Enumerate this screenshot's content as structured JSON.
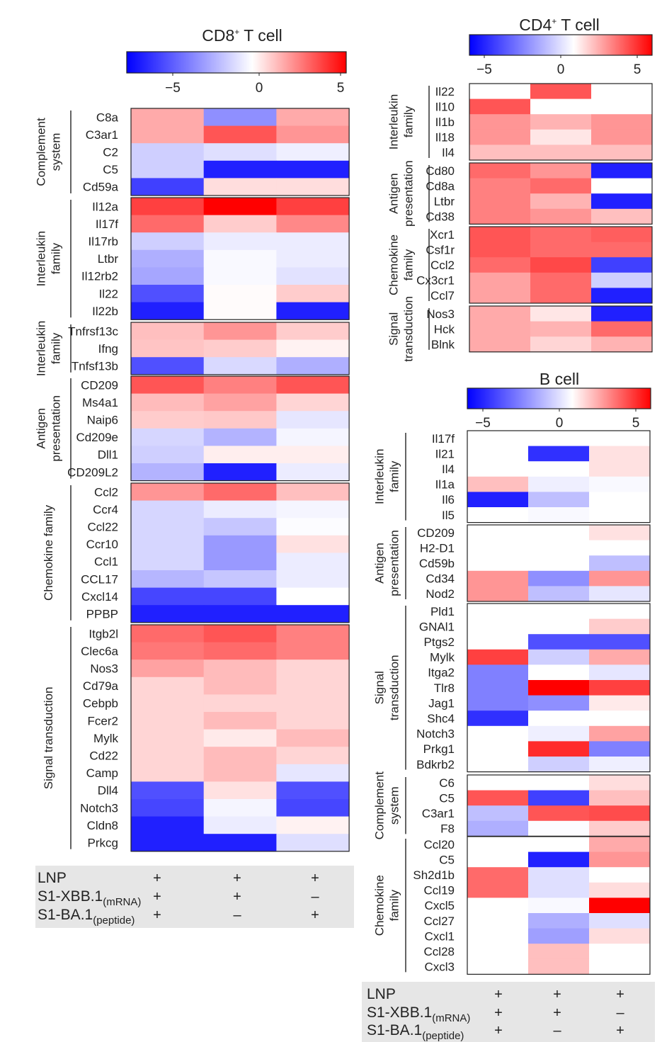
{
  "color_scale": {
    "min": -8,
    "mid": 0,
    "max": 6,
    "low_color": "#0000ff",
    "mid_color": "#ffffff",
    "high_color": "#ff0000"
  },
  "conditions": {
    "labels": [
      "LNP",
      "S1-XBB.1",
      "S1-BA.1"
    ],
    "subscripts": [
      "",
      "(mRNA)",
      "(peptide)"
    ],
    "rows": [
      [
        "+",
        "+",
        "+"
      ],
      [
        "+",
        "+",
        "–"
      ],
      [
        "+",
        "–",
        "+"
      ]
    ]
  },
  "chart_data": [
    {
      "type": "heatmap",
      "title": "CD8",
      "title_superscript": "+",
      "title_suffix": " T cell",
      "colorbar_ticks": [
        {
          "value": -5,
          "label": "−5"
        },
        {
          "value": 0,
          "label": "0"
        },
        {
          "value": 5,
          "label": "5"
        }
      ],
      "groups": [
        {
          "label": [
            "Complement",
            "system"
          ],
          "rows": [
            {
              "gene": "C8a",
              "values": [
                2,
                -3.5,
                2
              ]
            },
            {
              "gene": "C3ar1",
              "values": [
                2,
                4,
                2.5
              ]
            },
            {
              "gene": "C2",
              "values": [
                -1.5,
                -1,
                -0.5
              ]
            },
            {
              "gene": "C5",
              "values": [
                -1.5,
                -7,
                -7
              ]
            },
            {
              "gene": "Cd59a",
              "values": [
                -6,
                0.8,
                0.8
              ]
            }
          ]
        },
        {
          "label": [
            "Interleukin",
            "family"
          ],
          "rows": [
            {
              "gene": "Il12a",
              "values": [
                4.5,
                6,
                4.5
              ]
            },
            {
              "gene": "Il17f",
              "values": [
                3.5,
                1.2,
                2.8
              ]
            },
            {
              "gene": "Il17rb",
              "values": [
                -1.5,
                -0.6,
                -0.6
              ]
            },
            {
              "gene": "Ltbr",
              "values": [
                -2.5,
                -0.2,
                -0.6
              ]
            },
            {
              "gene": "Il12rb2",
              "values": [
                -2.8,
                -0.2,
                -0.9
              ]
            },
            {
              "gene": "Il22",
              "values": [
                -5.5,
                0.1,
                1.2
              ]
            },
            {
              "gene": "Il22b",
              "values": [
                -7,
                0.1,
                -7
              ]
            }
          ]
        },
        {
          "label": [
            "Interleukin",
            "family"
          ],
          "rows": [
            {
              "gene": "Tnfrsf13c",
              "values": [
                1.5,
                2.5,
                1.2
              ]
            },
            {
              "gene": "Ifng",
              "values": [
                1.4,
                1.2,
                0.3
              ]
            },
            {
              "gene": "Tnfsf13b",
              "values": [
                -5.5,
                -1.2,
                -2.5
              ]
            }
          ]
        },
        {
          "label": [
            "Antigen",
            "presentation"
          ],
          "rows": [
            {
              "gene": "CD209",
              "values": [
                4,
                3,
                4
              ]
            },
            {
              "gene": "Ms4a1",
              "values": [
                1.6,
                2.2,
                1
              ]
            },
            {
              "gene": "Naip6",
              "values": [
                1.2,
                1.3,
                -0.8
              ]
            },
            {
              "gene": "Cd209e",
              "values": [
                -1.3,
                -2.4,
                -0.3
              ]
            },
            {
              "gene": "Dll1",
              "values": [
                -1.5,
                0.4,
                0.4
              ]
            },
            {
              "gene": "CD209L2",
              "values": [
                -2.4,
                -7,
                -0.6
              ]
            }
          ]
        },
        {
          "label": [
            "Chemokine family"
          ],
          "rows": [
            {
              "gene": "Ccl2",
              "values": [
                2.5,
                3.5,
                1.5
              ]
            },
            {
              "gene": "Ccr4",
              "values": [
                -1.3,
                -0.6,
                -0.3
              ]
            },
            {
              "gene": "Ccl22",
              "values": [
                -1.3,
                -1.8,
                -0.1
              ]
            },
            {
              "gene": "Ccr10",
              "values": [
                -1.3,
                -3.2,
                0.7
              ]
            },
            {
              "gene": "Ccl1",
              "values": [
                -1.3,
                -3.2,
                -0.6
              ]
            },
            {
              "gene": "CCL17",
              "values": [
                -2.3,
                -1.8,
                -0.6
              ]
            },
            {
              "gene": "Cxcl14",
              "values": [
                -5.8,
                -5.8,
                0
              ]
            },
            {
              "gene": "PPBP",
              "values": [
                -7,
                -7,
                -7
              ]
            }
          ]
        },
        {
          "label": [
            "Signal transduction"
          ],
          "rows": [
            {
              "gene": "Itgb2l",
              "values": [
                3.5,
                4,
                3
              ]
            },
            {
              "gene": "Clec6a",
              "values": [
                3.2,
                3.5,
                3
              ]
            },
            {
              "gene": "Nos3",
              "values": [
                2.2,
                1.6,
                1
              ]
            },
            {
              "gene": "Cd79a",
              "values": [
                1,
                1.6,
                1
              ]
            },
            {
              "gene": "Cebpb",
              "values": [
                1,
                1,
                1
              ]
            },
            {
              "gene": "Fcer2",
              "values": [
                1,
                1.6,
                1
              ]
            },
            {
              "gene": "Mylk",
              "values": [
                1,
                0.5,
                1.6
              ]
            },
            {
              "gene": "Cd22",
              "values": [
                1,
                1.6,
                1
              ]
            },
            {
              "gene": "Camp",
              "values": [
                1,
                1.6,
                -0.8
              ]
            },
            {
              "gene": "Dll4",
              "values": [
                -5.5,
                0.7,
                -5.5
              ]
            },
            {
              "gene": "Notch3",
              "values": [
                -5.8,
                -0.3,
                -5.8
              ]
            },
            {
              "gene": "Cldn8",
              "values": [
                -7,
                -0.6,
                0.3
              ]
            },
            {
              "gene": "Prkcg",
              "values": [
                -7,
                -7,
                -1
              ]
            }
          ]
        }
      ]
    },
    {
      "type": "heatmap",
      "title": "CD4",
      "title_superscript": "+",
      "title_suffix": " T cell",
      "colorbar_ticks": [
        {
          "value": -5,
          "label": "−5"
        },
        {
          "value": 0,
          "label": "0"
        },
        {
          "value": 5,
          "label": "5"
        }
      ],
      "groups": [
        {
          "label": [
            "Interleukin",
            "family"
          ],
          "rows": [
            {
              "gene": "Il22",
              "values": [
                0,
                4,
                0
              ]
            },
            {
              "gene": "Il10",
              "values": [
                4,
                0,
                0
              ]
            },
            {
              "gene": "Il1b",
              "values": [
                2.5,
                1.8,
                2.5
              ]
            },
            {
              "gene": "Il18",
              "values": [
                2.5,
                0.6,
                2.5
              ]
            },
            {
              "gene": "Il4",
              "values": [
                1.5,
                1.5,
                1.5
              ]
            }
          ]
        },
        {
          "label": [
            "Antigen",
            "presentation"
          ],
          "rows": [
            {
              "gene": "Cd80",
              "values": [
                3.5,
                2.5,
                -7
              ]
            },
            {
              "gene": "Cd8a",
              "values": [
                3,
                3.5,
                0
              ]
            },
            {
              "gene": "Ltbr",
              "values": [
                3,
                1.8,
                -7
              ]
            },
            {
              "gene": "Cd38",
              "values": [
                3,
                2.5,
                1.5
              ]
            }
          ]
        },
        {
          "label": [
            "Chemokine",
            "family"
          ],
          "rows": [
            {
              "gene": "Xcr1",
              "values": [
                4,
                3.5,
                3.8
              ]
            },
            {
              "gene": "Csf1r",
              "values": [
                4,
                3.5,
                3.5
              ]
            },
            {
              "gene": "Ccl2",
              "values": [
                3.5,
                4.3,
                -6
              ]
            },
            {
              "gene": "Cx3cr1",
              "values": [
                2.2,
                3.5,
                -1.5
              ]
            },
            {
              "gene": "Ccl7",
              "values": [
                2.2,
                3.5,
                -7
              ]
            }
          ]
        },
        {
          "label": [
            "Signal",
            "transduction"
          ],
          "rows": [
            {
              "gene": "Nos3",
              "values": [
                2,
                0.6,
                -7
              ]
            },
            {
              "gene": "Hck",
              "values": [
                2,
                1.8,
                3.5
              ]
            },
            {
              "gene": "Blnk",
              "values": [
                2,
                1,
                1.8
              ]
            }
          ]
        }
      ]
    },
    {
      "type": "heatmap",
      "title": "B cell",
      "title_superscript": "",
      "title_suffix": "",
      "colorbar_ticks": [
        {
          "value": -5,
          "label": "−5"
        },
        {
          "value": 0,
          "label": "0"
        },
        {
          "value": 5,
          "label": "5"
        }
      ],
      "groups": [
        {
          "label": [
            "Interleukin",
            "family"
          ],
          "rows": [
            {
              "gene": "Il17f",
              "values": [
                0,
                0,
                0
              ]
            },
            {
              "gene": "Il21",
              "values": [
                0,
                -6.5,
                0.7
              ]
            },
            {
              "gene": "Il4",
              "values": [
                0,
                0,
                0.7
              ]
            },
            {
              "gene": "Il1a",
              "values": [
                1.5,
                -0.5,
                -0.2
              ]
            },
            {
              "gene": "Il6",
              "values": [
                -7,
                -2,
                0
              ]
            },
            {
              "gene": "Il5",
              "values": [
                0,
                -0.2,
                0
              ]
            }
          ]
        },
        {
          "label": [
            "Antigen",
            "presentation"
          ],
          "rows": [
            {
              "gene": "CD209",
              "values": [
                0,
                0,
                0.7
              ]
            },
            {
              "gene": "H2-D1",
              "values": [
                0,
                0,
                0
              ]
            },
            {
              "gene": "Cd59b",
              "values": [
                0,
                0,
                -2
              ]
            },
            {
              "gene": "Cd34",
              "values": [
                2.5,
                -3.5,
                2.5
              ]
            },
            {
              "gene": "Nod2",
              "values": [
                2.5,
                -2,
                -0.8
              ]
            }
          ]
        },
        {
          "label": [
            "Signal",
            "transduction"
          ],
          "rows": [
            {
              "gene": "Pld1",
              "values": [
                0,
                0,
                0
              ]
            },
            {
              "gene": "GNAl1",
              "values": [
                0,
                0,
                1.2
              ]
            },
            {
              "gene": "Ptgs2",
              "values": [
                0,
                -5.5,
                -5.5
              ]
            },
            {
              "gene": "Mylk",
              "values": [
                4.5,
                -1.5,
                2
              ]
            },
            {
              "gene": "Itga2",
              "values": [
                -4,
                0,
                -0.8
              ]
            },
            {
              "gene": "Tlr8",
              "values": [
                -4,
                6,
                4.5
              ]
            },
            {
              "gene": "Jag1",
              "values": [
                -4,
                -3.5,
                0.5
              ]
            },
            {
              "gene": "Shc4",
              "values": [
                -6.5,
                0,
                0
              ]
            },
            {
              "gene": "Notch3",
              "values": [
                0,
                -0.5,
                2.2
              ]
            },
            {
              "gene": "Prkg1",
              "values": [
                0,
                5,
                -4
              ]
            },
            {
              "gene": "Bdkrb2",
              "values": [
                0,
                -1.5,
                -0.5
              ]
            }
          ]
        },
        {
          "label": [
            "Complement",
            "system"
          ],
          "rows": [
            {
              "gene": "C6",
              "values": [
                0,
                0,
                0.8
              ]
            },
            {
              "gene": "C5",
              "values": [
                4,
                -6,
                1.5
              ]
            },
            {
              "gene": "C3ar1",
              "values": [
                -2,
                4,
                4.2
              ]
            },
            {
              "gene": "F8",
              "values": [
                -2.5,
                -0.1,
                1.2
              ]
            }
          ]
        },
        {
          "label": [
            "Chemokine",
            "family"
          ],
          "rows": [
            {
              "gene": "Ccl20",
              "values": [
                0,
                0,
                2
              ]
            },
            {
              "gene": "C5",
              "values": [
                0,
                -7,
                2.5
              ]
            },
            {
              "gene": "Sh2d1b",
              "values": [
                3.5,
                -1,
                0
              ]
            },
            {
              "gene": "Ccl19",
              "values": [
                3.5,
                -1,
                0.8
              ]
            },
            {
              "gene": "Cxcl5",
              "values": [
                0,
                -0.2,
                6
              ]
            },
            {
              "gene": "Ccl27",
              "values": [
                0,
                -2.5,
                -1
              ]
            },
            {
              "gene": "Cxcl1",
              "values": [
                0,
                -3,
                0.8
              ]
            },
            {
              "gene": "Ccl28",
              "values": [
                0,
                1.5,
                0
              ]
            },
            {
              "gene": "Cxcl3",
              "values": [
                0,
                1.5,
                0
              ]
            }
          ]
        }
      ]
    }
  ]
}
